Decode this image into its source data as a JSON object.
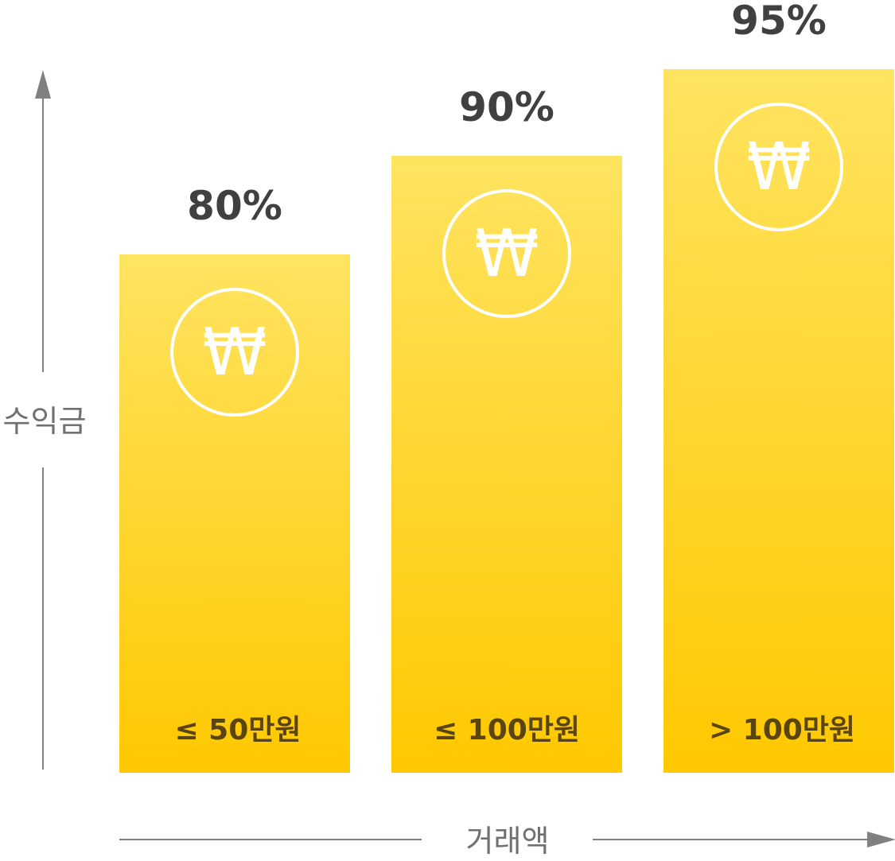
{
  "chart_data": {
    "type": "bar",
    "categories": [
      "≤ 50만원",
      "≤ 100만원",
      "> 100만원"
    ],
    "values": [
      80,
      90,
      95
    ],
    "value_labels": [
      "80%",
      "90%",
      "95%"
    ],
    "title": "",
    "xlabel": "거래액",
    "ylabel": "수익금",
    "ylim": [
      0,
      100
    ],
    "grid": false,
    "legend": "none"
  },
  "icon": {
    "name": "won-coin-icon",
    "glyph": "₩"
  },
  "colors": {
    "bar_top": "#FFE461",
    "bar_bottom": "#FFC800",
    "category_text": "#5A4510",
    "value_text": "#404040",
    "axis": "#808080",
    "axis_label": "#707070",
    "coin": "#FFFFFF"
  }
}
